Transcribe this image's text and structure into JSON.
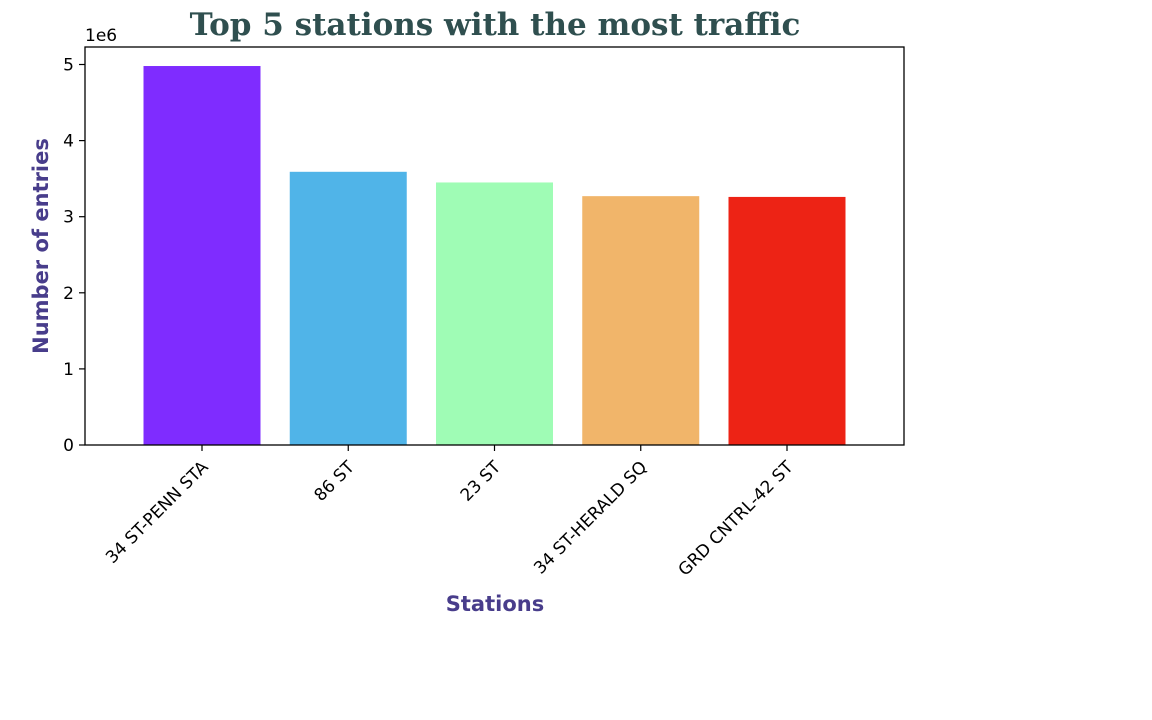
{
  "chart_data": {
    "type": "bar",
    "title": "Top 5 stations with the most traffic",
    "xlabel": "Stations",
    "ylabel": "Number of entries",
    "y_offset_label": "1e6",
    "y_scale": 1000000,
    "categories": [
      "34 ST-PENN STA",
      "86 ST",
      "23 ST",
      "34 ST-HERALD SQ",
      "GRD CNTRL-42 ST"
    ],
    "values": [
      4980000,
      3590000,
      3450000,
      3270000,
      3260000
    ],
    "bar_colors": [
      "#7f2cff",
      "#50b4e8",
      "#9ffcb5",
      "#f1b56a",
      "#ed2315"
    ],
    "ylim": [
      0,
      5230000
    ],
    "yticks": [
      0,
      1,
      2,
      3,
      4,
      5
    ],
    "grid": false,
    "legend": "none",
    "colors": {
      "title": "#2f4f4f",
      "axis_label": "#483d8b"
    }
  }
}
